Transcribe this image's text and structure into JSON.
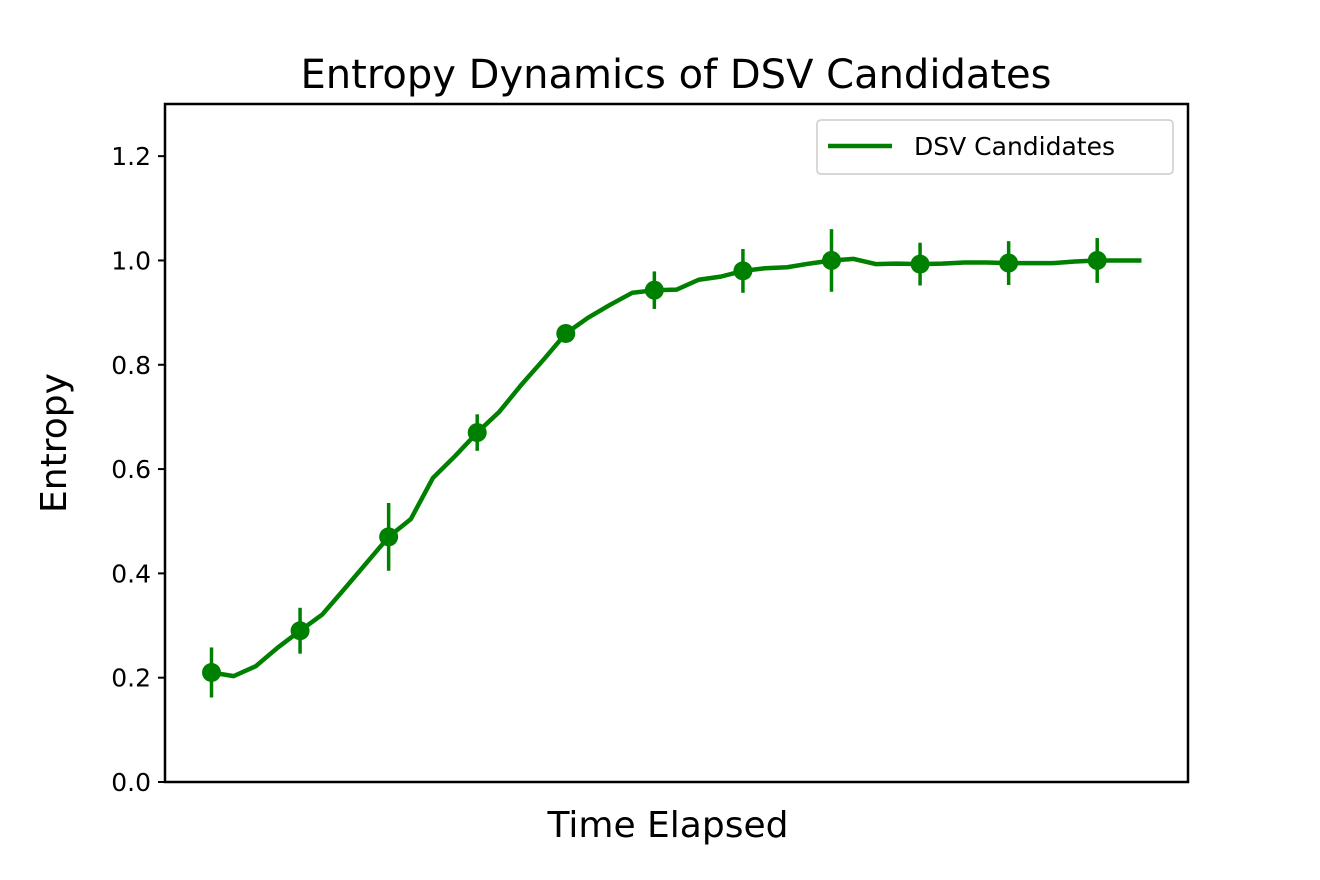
{
  "chart_data": {
    "type": "line",
    "title": "Entropy Dynamics of DSV Candidates",
    "xlabel": "Time Elapsed",
    "ylabel": "Entropy",
    "xlim": [
      -2.1,
      44.1
    ],
    "ylim": [
      0,
      1.3
    ],
    "yticks": [
      "0.0",
      "0.2",
      "0.4",
      "0.6",
      "0.8",
      "1.0",
      "1.2"
    ],
    "grid": false,
    "legend_position": "top-right",
    "color": "#008000",
    "series": [
      {
        "name": "DSV Candidates",
        "x": [
          0,
          1,
          2,
          3,
          4,
          5,
          6,
          7,
          8,
          9,
          10,
          11,
          12,
          13,
          14,
          15,
          16,
          17,
          18,
          19,
          20,
          21,
          22,
          23,
          24,
          25,
          26,
          27,
          28,
          29,
          30,
          31,
          32,
          33,
          34,
          35,
          36,
          37,
          38,
          39,
          40,
          41,
          42
        ],
        "y": [
          0.21,
          0.203,
          0.222,
          0.258,
          0.29,
          0.321,
          0.37,
          0.42,
          0.47,
          0.504,
          0.583,
          0.625,
          0.67,
          0.71,
          0.762,
          0.81,
          0.86,
          0.89,
          0.915,
          0.938,
          0.943,
          0.944,
          0.963,
          0.969,
          0.98,
          0.985,
          0.987,
          0.994,
          1.0,
          1.003,
          0.993,
          0.994,
          0.993,
          0.994,
          0.996,
          0.996,
          0.995,
          0.995,
          0.995,
          0.998,
          1.0,
          1.0,
          1.0
        ]
      }
    ],
    "error_points": {
      "x": [
        0,
        4,
        8,
        12,
        16,
        20,
        24,
        28,
        32,
        36,
        40
      ],
      "y": [
        0.21,
        0.29,
        0.47,
        0.67,
        0.86,
        0.943,
        0.98,
        1.0,
        0.993,
        0.995,
        1.0
      ],
      "err": [
        0.048,
        0.044,
        0.065,
        0.035,
        0.01,
        0.036,
        0.042,
        0.06,
        0.041,
        0.042,
        0.043
      ]
    }
  }
}
